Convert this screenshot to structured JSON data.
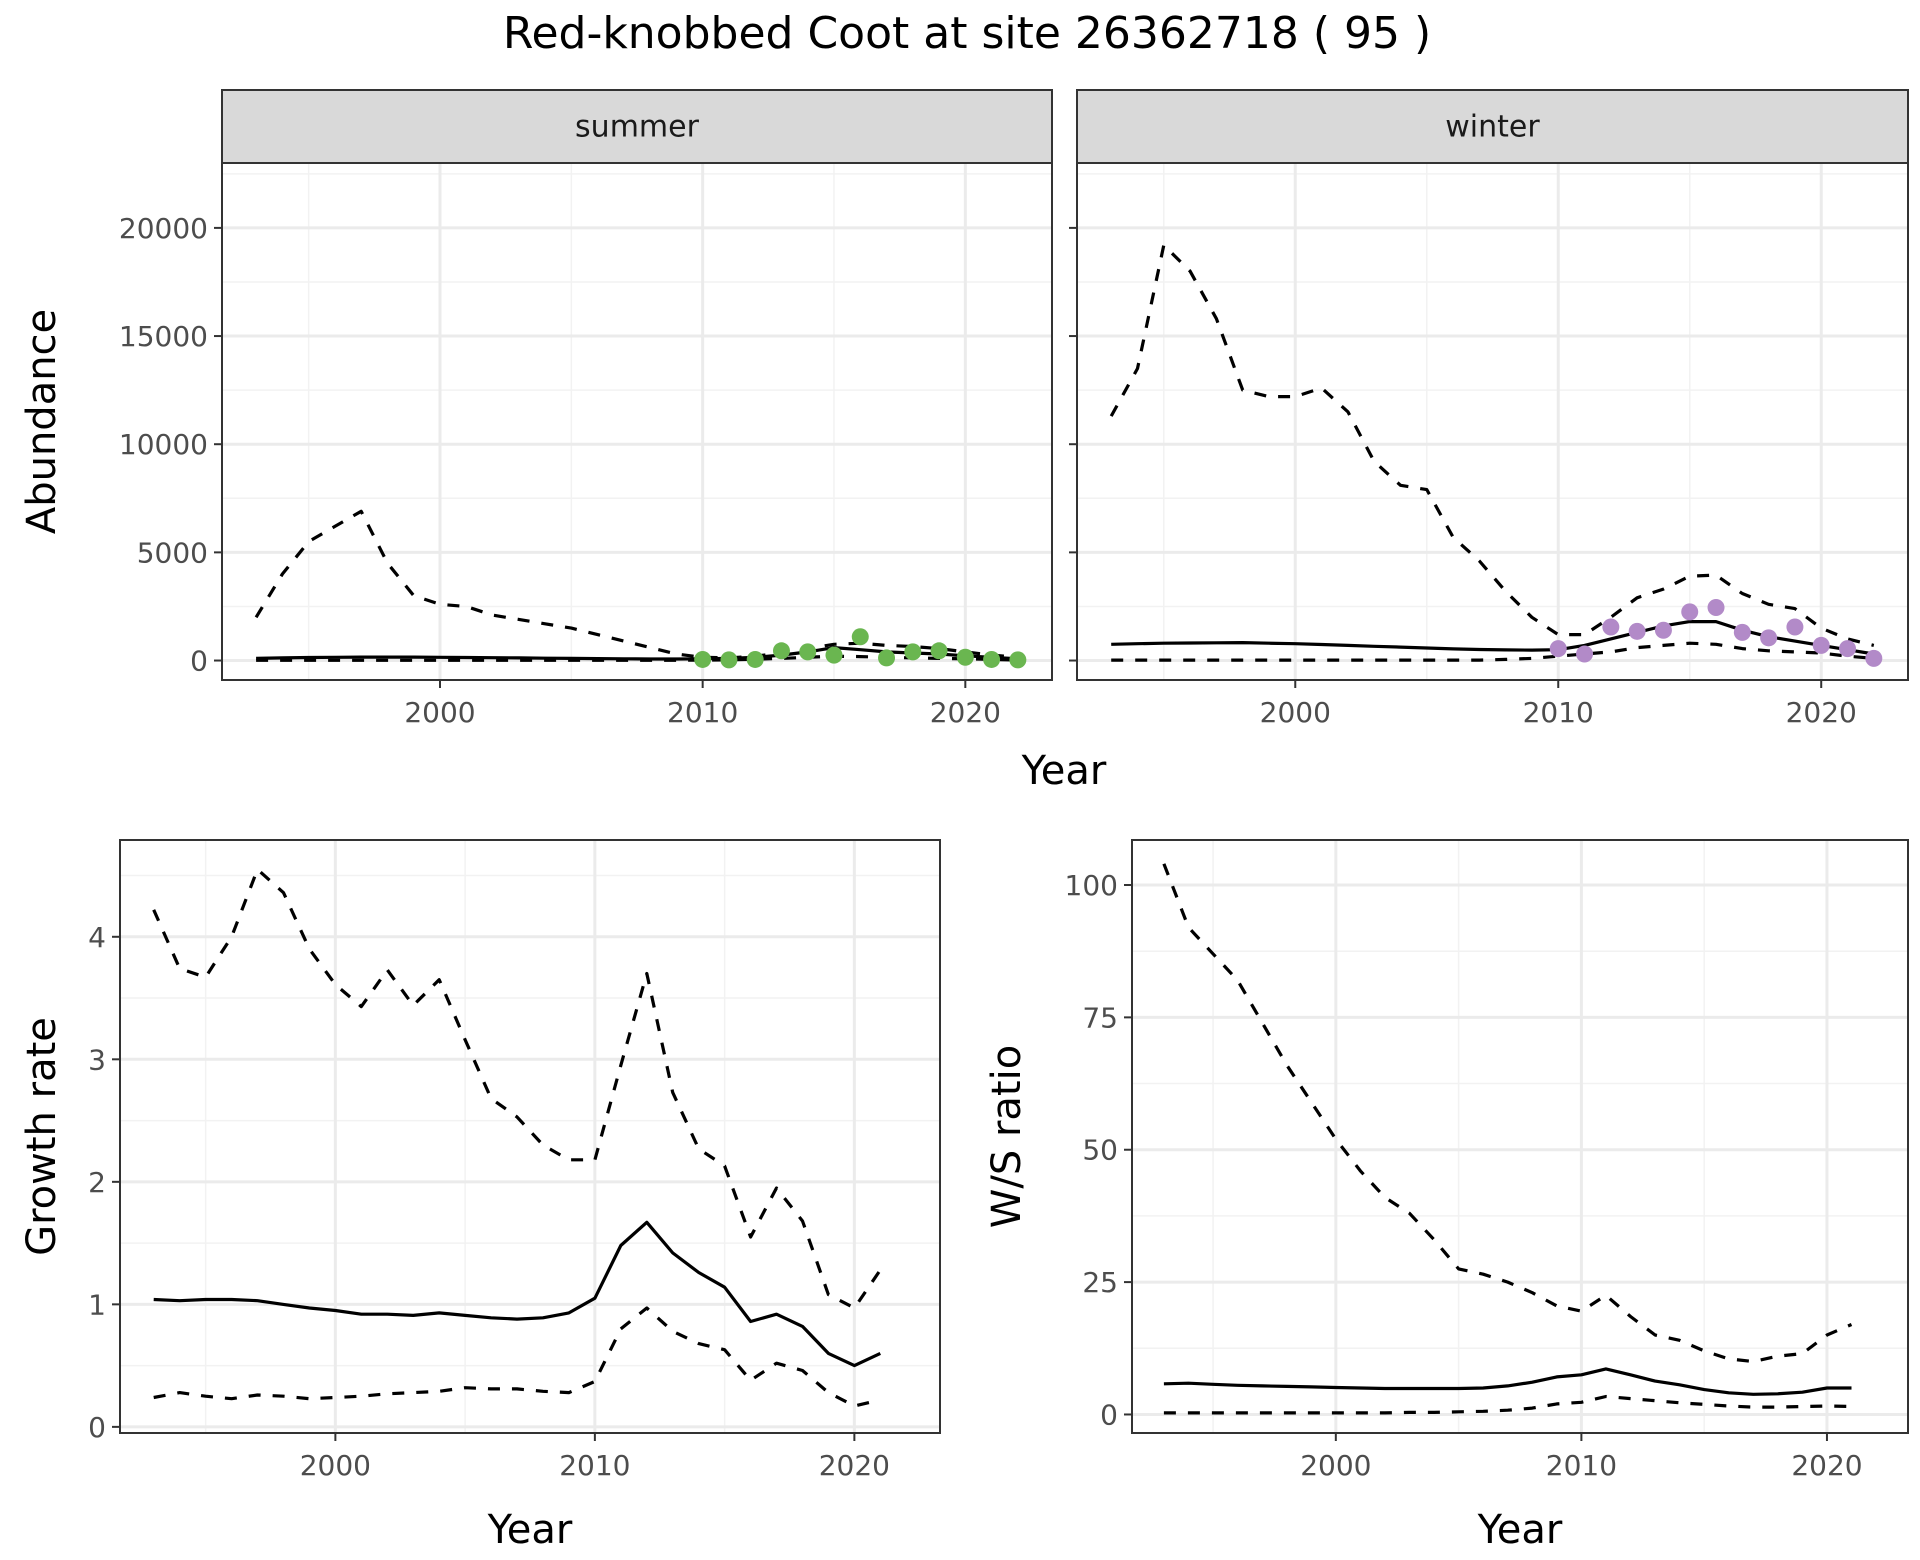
{
  "title": "Red-knobbed Coot at site 26362718 ( 95 )",
  "colors": {
    "summer_points": "#6ab650",
    "winter_points": "#b28ac8",
    "line": "#000000",
    "strip_bg": "#d9d9d9",
    "grid": "#ebebeb"
  },
  "chart_data": [
    {
      "id": "summer",
      "type": "line",
      "strip": "summer",
      "ylabel": "Abundance",
      "xlabel": "",
      "xlim": [
        1991.7,
        2023.3
      ],
      "ylim": [
        -900,
        23000
      ],
      "xticks": [
        2000,
        2010,
        2020
      ],
      "xtick_labels": [
        "2000",
        "2010",
        "2020"
      ],
      "yticks": [
        0,
        5000,
        10000,
        15000,
        20000
      ],
      "ytick_labels": [
        "0",
        "5000",
        "10000",
        "15000",
        "20000"
      ],
      "grid": true,
      "legend": "none",
      "x": [
        1993,
        1994,
        1995,
        1996,
        1997,
        1998,
        1999,
        2000,
        2001,
        2002,
        2003,
        2004,
        2005,
        2006,
        2007,
        2008,
        2009,
        2010,
        2011,
        2012,
        2013,
        2014,
        2015,
        2016,
        2017,
        2018,
        2019,
        2020,
        2021,
        2022
      ],
      "series": [
        {
          "role": "estimate",
          "style": "solid",
          "values": [
            100,
            120,
            140,
            150,
            160,
            160,
            160,
            150,
            140,
            130,
            120,
            110,
            100,
            90,
            80,
            70,
            70,
            80,
            100,
            150,
            250,
            400,
            600,
            500,
            400,
            350,
            300,
            220,
            150,
            80
          ]
        },
        {
          "role": "upper",
          "style": "dashed",
          "values": [
            2000,
            4000,
            5500,
            6200,
            6900,
            4500,
            3000,
            2600,
            2500,
            2100,
            1900,
            1700,
            1500,
            1200,
            900,
            600,
            300,
            150,
            120,
            200,
            350,
            550,
            750,
            800,
            700,
            650,
            550,
            400,
            250,
            150
          ]
        },
        {
          "role": "lower",
          "style": "dashed",
          "values": [
            10,
            10,
            10,
            10,
            10,
            10,
            10,
            10,
            10,
            10,
            10,
            10,
            10,
            10,
            10,
            10,
            10,
            20,
            30,
            60,
            100,
            150,
            200,
            180,
            150,
            120,
            100,
            80,
            50,
            20
          ]
        }
      ],
      "points": {
        "x": [
          2010,
          2011,
          2012,
          2013,
          2014,
          2015,
          2016,
          2017,
          2018,
          2019,
          2020,
          2021,
          2022
        ],
        "y": [
          50,
          30,
          50,
          450,
          400,
          250,
          1100,
          120,
          400,
          450,
          150,
          50,
          30
        ]
      }
    },
    {
      "id": "winter",
      "type": "line",
      "strip": "winter",
      "ylabel": "",
      "xlabel": "Year",
      "xlim": [
        1991.7,
        2023.3
      ],
      "ylim": [
        -900,
        23000
      ],
      "xticks": [
        2000,
        2010,
        2020
      ],
      "xtick_labels": [
        "2000",
        "2010",
        "2020"
      ],
      "yticks": [
        0,
        5000,
        10000,
        15000,
        20000
      ],
      "ytick_labels": [
        "",
        "",
        "",
        "",
        ""
      ],
      "grid": true,
      "legend": "none",
      "x": [
        1993,
        1994,
        1995,
        1996,
        1997,
        1998,
        1999,
        2000,
        2001,
        2002,
        2003,
        2004,
        2005,
        2006,
        2007,
        2008,
        2009,
        2010,
        2011,
        2012,
        2013,
        2014,
        2015,
        2016,
        2017,
        2018,
        2019,
        2020,
        2021,
        2022
      ],
      "series": [
        {
          "role": "estimate",
          "style": "solid",
          "values": [
            750,
            780,
            800,
            810,
            820,
            830,
            800,
            780,
            740,
            700,
            660,
            620,
            580,
            540,
            510,
            490,
            480,
            500,
            700,
            1000,
            1300,
            1600,
            1800,
            1800,
            1400,
            1100,
            900,
            700,
            500,
            300
          ]
        },
        {
          "role": "upper",
          "style": "dashed",
          "values": [
            11300,
            13500,
            19200,
            18000,
            15800,
            12500,
            12200,
            12200,
            12600,
            11500,
            9200,
            8100,
            7900,
            5700,
            4600,
            3200,
            2000,
            1200,
            1200,
            2000,
            2900,
            3300,
            3900,
            3950,
            3100,
            2600,
            2400,
            1500,
            1000,
            700
          ]
        },
        {
          "role": "lower",
          "style": "dashed",
          "values": [
            20,
            20,
            20,
            20,
            20,
            20,
            20,
            20,
            20,
            20,
            20,
            20,
            20,
            20,
            20,
            50,
            100,
            200,
            300,
            400,
            600,
            700,
            800,
            750,
            550,
            450,
            400,
            350,
            200,
            100
          ]
        }
      ],
      "points": {
        "x": [
          2010,
          2011,
          2012,
          2013,
          2014,
          2015,
          2016,
          2017,
          2018,
          2019,
          2020,
          2021,
          2022
        ],
        "y": [
          550,
          300,
          1550,
          1350,
          1400,
          2250,
          2450,
          1300,
          1050,
          1550,
          700,
          550,
          100
        ]
      }
    },
    {
      "id": "growth",
      "type": "line",
      "ylabel": "Growth rate",
      "xlabel": "Year",
      "xlim": [
        1991.7,
        2023.3
      ],
      "ylim": [
        -0.05,
        4.79
      ],
      "xticks": [
        2000,
        2010,
        2020
      ],
      "xtick_labels": [
        "2000",
        "2010",
        "2020"
      ],
      "yticks": [
        0,
        1,
        2,
        3,
        4
      ],
      "ytick_labels": [
        "0",
        "1",
        "2",
        "3",
        "4"
      ],
      "grid": true,
      "legend": "none",
      "x": [
        1993,
        1994,
        1995,
        1996,
        1997,
        1998,
        1999,
        2000,
        2001,
        2002,
        2003,
        2004,
        2005,
        2006,
        2007,
        2008,
        2009,
        2010,
        2011,
        2012,
        2013,
        2014,
        2015,
        2016,
        2017,
        2018,
        2019,
        2020,
        2021
      ],
      "series": [
        {
          "role": "estimate",
          "style": "solid",
          "values": [
            1.04,
            1.03,
            1.04,
            1.04,
            1.03,
            1.0,
            0.97,
            0.95,
            0.92,
            0.92,
            0.91,
            0.93,
            0.91,
            0.89,
            0.88,
            0.89,
            0.93,
            1.05,
            1.48,
            1.67,
            1.42,
            1.26,
            1.14,
            0.86,
            0.92,
            0.82,
            0.6,
            0.5,
            0.6
          ]
        },
        {
          "role": "upper",
          "style": "dashed",
          "values": [
            4.22,
            3.74,
            3.67,
            4.0,
            4.55,
            4.36,
            3.9,
            3.61,
            3.43,
            3.73,
            3.44,
            3.65,
            3.16,
            2.68,
            2.53,
            2.3,
            2.18,
            2.18,
            2.95,
            3.7,
            2.73,
            2.27,
            2.13,
            1.55,
            1.95,
            1.68,
            1.08,
            0.97,
            1.28
          ]
        },
        {
          "role": "lower",
          "style": "dashed",
          "values": [
            0.24,
            0.28,
            0.25,
            0.23,
            0.26,
            0.25,
            0.23,
            0.24,
            0.25,
            0.27,
            0.28,
            0.29,
            0.32,
            0.31,
            0.31,
            0.29,
            0.28,
            0.37,
            0.8,
            0.97,
            0.78,
            0.68,
            0.63,
            0.38,
            0.52,
            0.46,
            0.28,
            0.17,
            0.22
          ]
        }
      ]
    },
    {
      "id": "ws",
      "type": "line",
      "ylabel": "W/S ratio",
      "xlabel": "Year",
      "xlim": [
        1991.7,
        2023.3
      ],
      "ylim": [
        -3.5,
        108.5
      ],
      "xticks": [
        2000,
        2010,
        2020
      ],
      "xtick_labels": [
        "2000",
        "2010",
        "2020"
      ],
      "yticks": [
        0,
        25,
        50,
        75,
        100
      ],
      "ytick_labels": [
        "0",
        "25",
        "50",
        "75",
        "100"
      ],
      "grid": true,
      "legend": "none",
      "x": [
        1993,
        1994,
        1995,
        1996,
        1997,
        1998,
        1999,
        2000,
        2001,
        2002,
        2003,
        2004,
        2005,
        2006,
        2007,
        2008,
        2009,
        2010,
        2011,
        2012,
        2013,
        2014,
        2015,
        2016,
        2017,
        2018,
        2019,
        2020,
        2021
      ],
      "series": [
        {
          "role": "estimate",
          "style": "solid",
          "values": [
            5.8,
            5.9,
            5.7,
            5.5,
            5.4,
            5.3,
            5.2,
            5.1,
            5.0,
            4.9,
            4.9,
            4.9,
            4.9,
            5.0,
            5.4,
            6.1,
            7.1,
            7.5,
            8.6,
            7.5,
            6.3,
            5.6,
            4.7,
            4.1,
            3.8,
            3.9,
            4.2,
            5.0,
            5.0
          ]
        },
        {
          "role": "upper",
          "style": "dashed",
          "values": [
            104,
            92,
            87,
            82,
            74,
            66,
            59,
            52,
            46,
            41,
            38,
            33,
            27.5,
            26.5,
            25,
            23,
            20.5,
            19.5,
            22.5,
            18.5,
            15,
            14,
            12,
            10.5,
            10,
            11,
            11.5,
            15,
            17
          ]
        },
        {
          "role": "lower",
          "style": "dashed",
          "values": [
            0.3,
            0.3,
            0.3,
            0.3,
            0.3,
            0.3,
            0.3,
            0.3,
            0.3,
            0.3,
            0.4,
            0.4,
            0.5,
            0.6,
            0.8,
            1.2,
            2.0,
            2.3,
            3.4,
            3.0,
            2.6,
            2.2,
            1.9,
            1.6,
            1.4,
            1.4,
            1.5,
            1.6,
            1.5
          ]
        }
      ]
    }
  ]
}
